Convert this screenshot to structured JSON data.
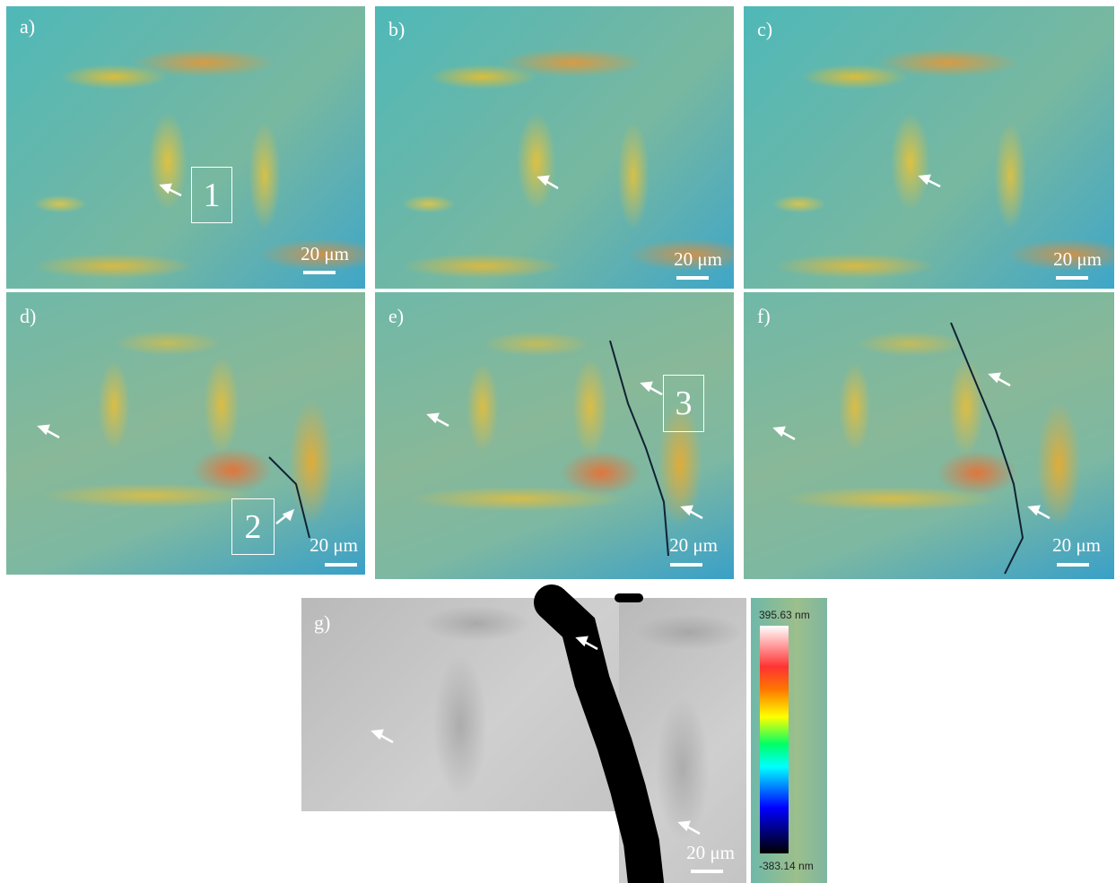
{
  "panels": [
    {
      "label": "a)",
      "scale": "20 μm",
      "box": "1"
    },
    {
      "label": "b)",
      "scale": "20 μm"
    },
    {
      "label": "c)",
      "scale": "20 μm"
    },
    {
      "label": "d)",
      "scale": "20 μm",
      "box": "2"
    },
    {
      "label": "e)",
      "scale": "20 μm",
      "box": "3"
    },
    {
      "label": "f)",
      "scale": "20 μm"
    },
    {
      "label": "g)",
      "scale": "20 μm"
    }
  ],
  "colorbar": {
    "max": "395.63 nm",
    "min": "-383.14 nm"
  }
}
